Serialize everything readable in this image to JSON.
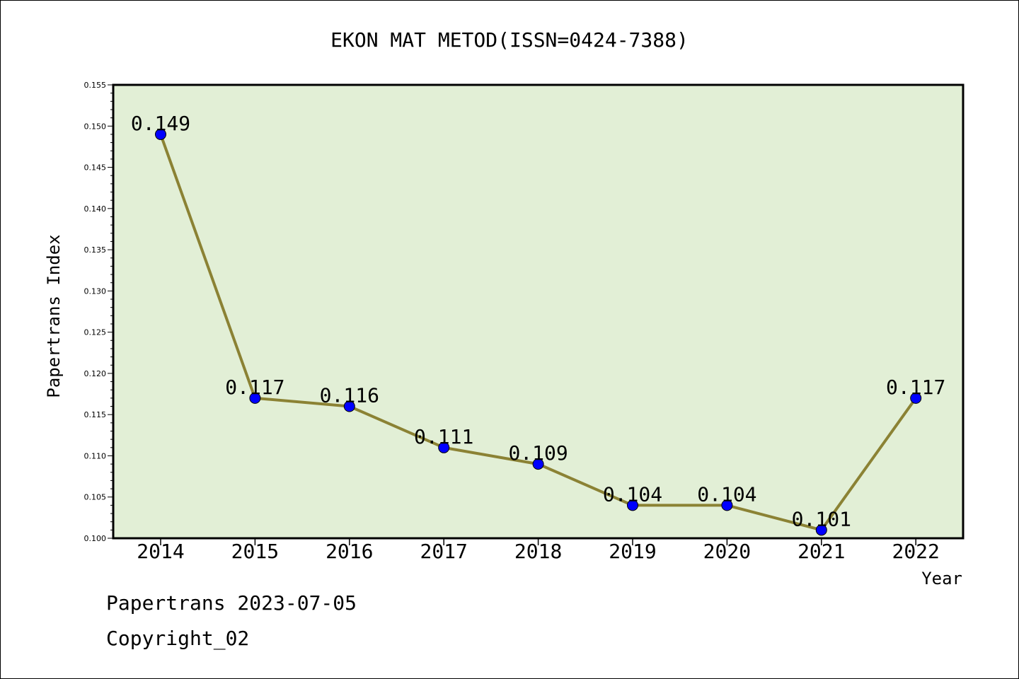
{
  "chart_data": {
    "type": "line",
    "title": "EKON MAT METOD(ISSN=0424-7388)",
    "xlabel": "Year",
    "ylabel": "Papertrans Index",
    "categories": [
      "2014",
      "2015",
      "2016",
      "2017",
      "2018",
      "2019",
      "2020",
      "2021",
      "2022"
    ],
    "series": [
      {
        "values": [
          0.149,
          0.117,
          0.116,
          0.111,
          0.109,
          0.104,
          0.104,
          0.101,
          0.117
        ],
        "labels": [
          "0.149",
          "0.117",
          "0.116",
          "0.111",
          "0.109",
          "0.104",
          "0.104",
          "0.101",
          "0.117"
        ]
      }
    ],
    "ylim": [
      0.1,
      0.155
    ],
    "yticks": [
      "0.100",
      "0.105",
      "0.110",
      "0.115",
      "0.120",
      "0.125",
      "0.130",
      "0.135",
      "0.140",
      "0.145",
      "0.150",
      "0.155"
    ],
    "grid": false,
    "legend": "none",
    "colors": {
      "plot_background": "#e2efd6",
      "line": "#8b8234",
      "marker": "#0000ff",
      "marker_edge": "#000000",
      "axis": "#000000"
    }
  },
  "footer": {
    "source_line": "Papertrans 2023-07-05",
    "copyright_line": "Copyright_02"
  }
}
